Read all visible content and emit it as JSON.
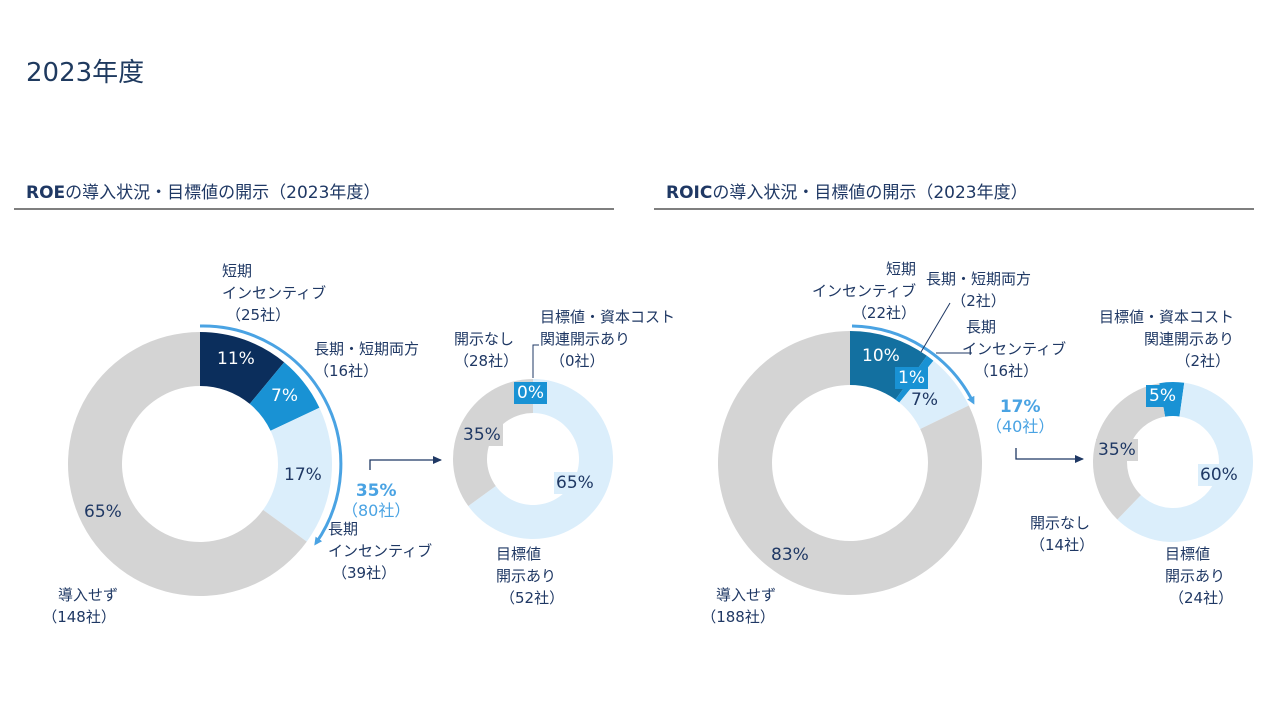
{
  "page": {
    "title": "2023年度"
  },
  "colors": {
    "not_adopted": "#d4d4d4",
    "short_term_roe": "#0b2e5c",
    "short_term_roic": "#1370a0",
    "both": "#1992d4",
    "long_term": "#dbeefb",
    "arrow": "#4aa3e3",
    "text": "#1f3864"
  },
  "roe": {
    "header_bold": "ROE",
    "header_rest": "の導入状況・目標値の開示（2023年度）",
    "main": {
      "short_term": {
        "pct": "11%",
        "label1": "短期",
        "label2": "インセンティブ",
        "count": "（25社）"
      },
      "both": {
        "pct": "7%",
        "label1": "長期・短期両方",
        "count": "（16社）"
      },
      "long_term": {
        "pct": "17%",
        "label1": "長期",
        "label2": "インセンティブ",
        "count": "（39社）"
      },
      "not_adopted": {
        "pct": "65%",
        "label1": "導入せず",
        "count": "（148社）"
      },
      "total": {
        "pct": "35%",
        "count": "（80社）"
      }
    },
    "sub": {
      "no_disclosure": {
        "pct": "35%",
        "label1": "開示なし",
        "count": "（28社）"
      },
      "capital_cost": {
        "pct": "0%",
        "label1": "目標値・資本コスト",
        "label2": "関連開示あり",
        "count": "（0社）"
      },
      "target_disclosed": {
        "pct": "65%",
        "label1": "目標値",
        "label2": "開示あり",
        "count": "（52社）"
      }
    }
  },
  "roic": {
    "header_bold": "ROIC",
    "header_rest": "の導入状況・目標値の開示（2023年度）",
    "main": {
      "short_term": {
        "pct": "10%",
        "label1": "短期",
        "label2": "インセンティブ",
        "count": "（22社）"
      },
      "both": {
        "pct": "1%",
        "label1": "長期・短期両方",
        "count": "（2社）"
      },
      "long_term": {
        "pct": "7%",
        "label1": "長期",
        "label2": "インセンティブ",
        "count": "（16社）"
      },
      "not_adopted": {
        "pct": "83%",
        "label1": "導入せず",
        "count": "（188社）"
      },
      "total": {
        "pct": "17%",
        "count": "（40社）"
      }
    },
    "sub": {
      "no_disclosure": {
        "pct": "35%",
        "label1": "開示なし",
        "count": "（14社）"
      },
      "capital_cost": {
        "pct": "5%",
        "label1": "目標値・資本コスト",
        "label2": "関連開示あり",
        "count": "（2社）"
      },
      "target_disclosed": {
        "pct": "60%",
        "label1": "目標値",
        "label2": "開示あり",
        "count": "（24社）"
      }
    }
  },
  "chart_data": [
    {
      "type": "pie",
      "title": "ROEの導入状況（2023年度）",
      "categories": [
        "短期インセンティブ",
        "長期・短期両方",
        "長期インセンティブ",
        "導入せず"
      ],
      "values": [
        11,
        7,
        17,
        65
      ],
      "counts": [
        25,
        16,
        39,
        148
      ],
      "annotation": "導入 35%（80社）"
    },
    {
      "type": "pie",
      "title": "ROE目標値の開示（導入80社）",
      "categories": [
        "目標値・資本コスト関連開示あり",
        "目標値開示あり",
        "開示なし"
      ],
      "values": [
        0,
        65,
        35
      ],
      "counts": [
        0,
        52,
        28
      ]
    },
    {
      "type": "pie",
      "title": "ROICの導入状況（2023年度）",
      "categories": [
        "短期インセンティブ",
        "長期・短期両方",
        "長期インセンティブ",
        "導入せず"
      ],
      "values": [
        10,
        1,
        7,
        83
      ],
      "counts": [
        22,
        2,
        16,
        188
      ],
      "annotation": "導入 17%（40社）"
    },
    {
      "type": "pie",
      "title": "ROIC目標値の開示（導入40社）",
      "categories": [
        "目標値・資本コスト関連開示あり",
        "目標値開示あり",
        "開示なし"
      ],
      "values": [
        5,
        60,
        35
      ],
      "counts": [
        2,
        24,
        14
      ]
    }
  ]
}
